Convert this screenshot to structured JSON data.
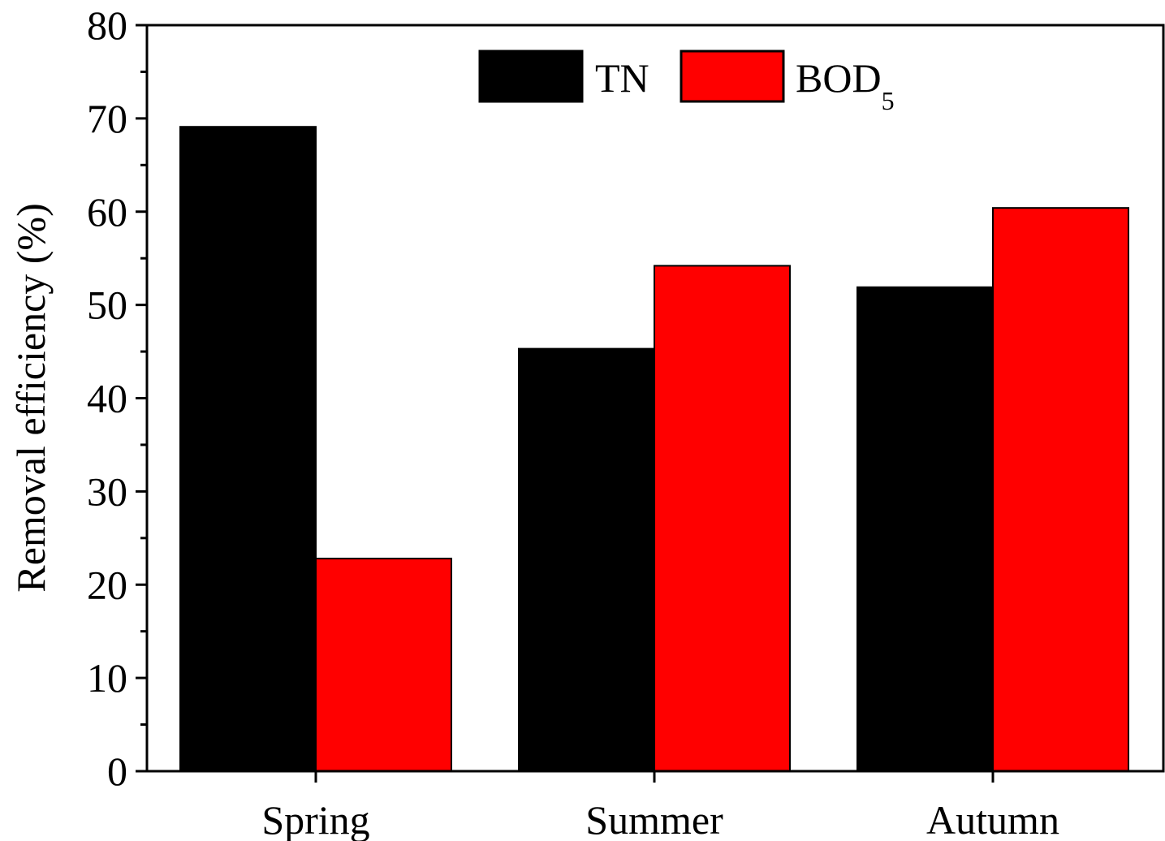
{
  "chart_data": {
    "type": "bar",
    "categories": [
      "Spring",
      "Summer",
      "Autumn"
    ],
    "series": [
      {
        "name": "TN",
        "color": "#000000",
        "values": [
          69.1,
          45.3,
          51.9
        ]
      },
      {
        "name": "BOD",
        "name_subscript": "5",
        "color": "#ff0000",
        "values": [
          22.8,
          54.2,
          60.4
        ]
      }
    ],
    "xlabel": "",
    "ylabel": "Removal efficiency (%)",
    "ylim": [
      0,
      80
    ],
    "yticks": [
      "0",
      "10",
      "20",
      "30",
      "40",
      "50",
      "60",
      "70",
      "80"
    ],
    "grid": false,
    "legend_position": "top-center"
  }
}
